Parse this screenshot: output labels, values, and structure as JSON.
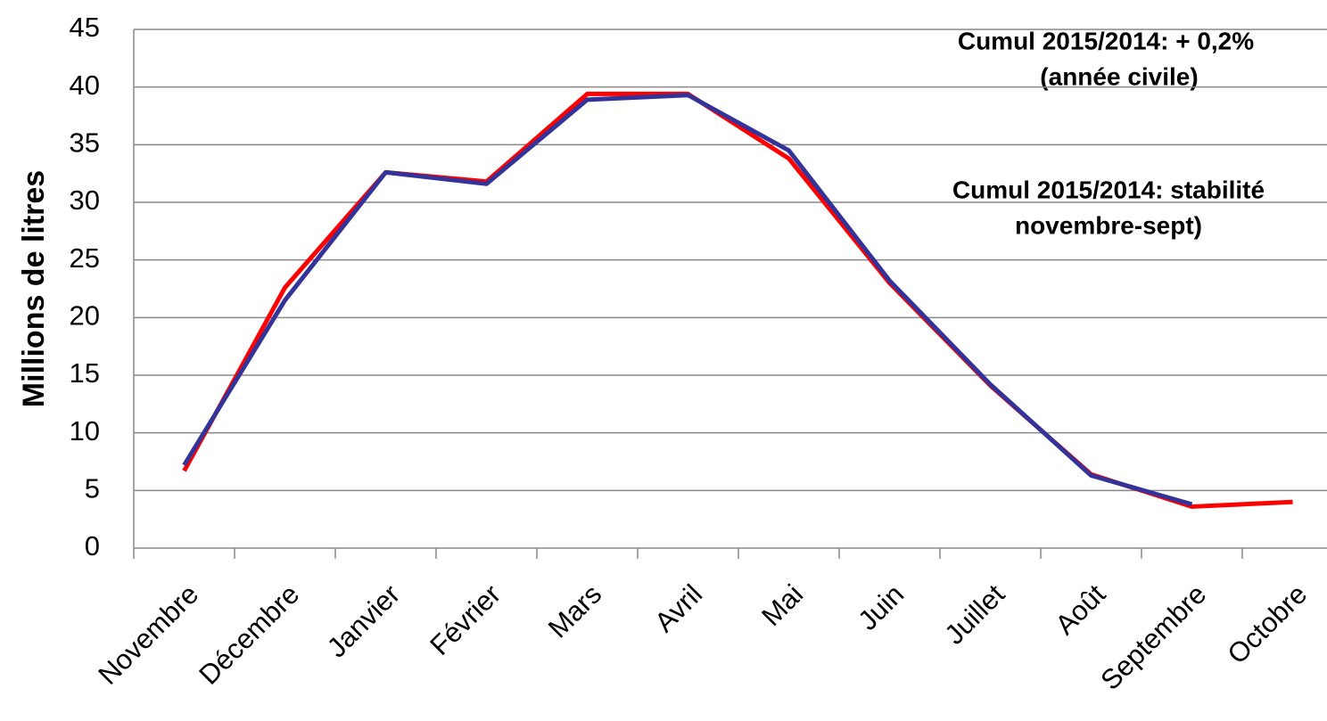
{
  "chart_data": {
    "type": "line",
    "y_label": "Millions de litres",
    "annotations": [
      "Cumul 2015/2014: + 0,2%",
      "(année civile)",
      "Cumul 2015/2014: stabilité",
      "novembre-sept)"
    ],
    "categories": [
      "Novembre",
      "Décembre",
      "Janvier",
      "Février",
      "Mars",
      "Avril",
      "Mai",
      "Juin",
      "Juillet",
      "Août",
      "Septembre",
      "Octobre"
    ],
    "series": [
      {
        "color": "#ff0000",
        "values": [
          6.7,
          22.6,
          32.6,
          31.8,
          39.4,
          39.4,
          33.8,
          23.0,
          14.1,
          6.4,
          3.6,
          4.0
        ]
      },
      {
        "color": "#333399",
        "values": [
          7.2,
          21.5,
          32.6,
          31.6,
          38.9,
          39.3,
          34.5,
          23.2,
          14.2,
          6.3,
          3.8,
          null
        ]
      }
    ],
    "ylim": [
      0,
      45
    ],
    "yticks": [
      0,
      5,
      10,
      15,
      20,
      25,
      30,
      35,
      40,
      45
    ],
    "grid": true
  }
}
